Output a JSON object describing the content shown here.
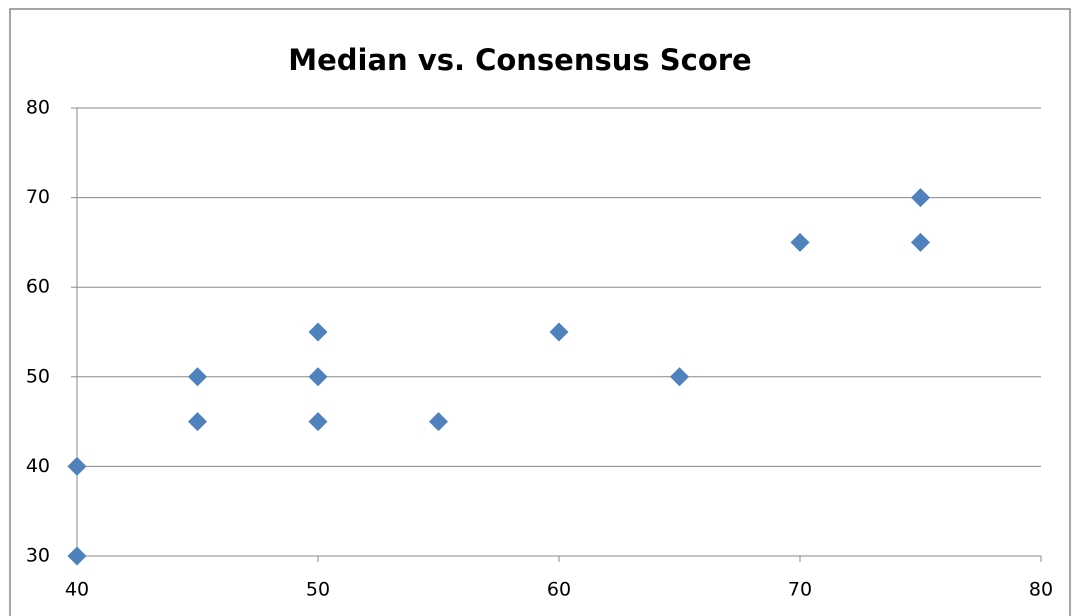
{
  "chart_data": {
    "type": "scatter",
    "title": "Median vs. Consensus Score",
    "x": [
      40,
      40,
      45,
      45,
      50,
      50,
      50,
      55,
      60,
      65,
      70,
      75,
      75
    ],
    "values": [
      40,
      30,
      50,
      45,
      55,
      50,
      45,
      45,
      55,
      50,
      65,
      70,
      65
    ],
    "color": "#4f81bd",
    "xlim": [
      40,
      80
    ],
    "xticks": [
      40,
      50,
      60,
      70,
      80
    ],
    "ylim": [
      30,
      80
    ],
    "yticks": [
      30,
      40,
      50,
      60,
      70,
      80
    ],
    "grid": true
  }
}
